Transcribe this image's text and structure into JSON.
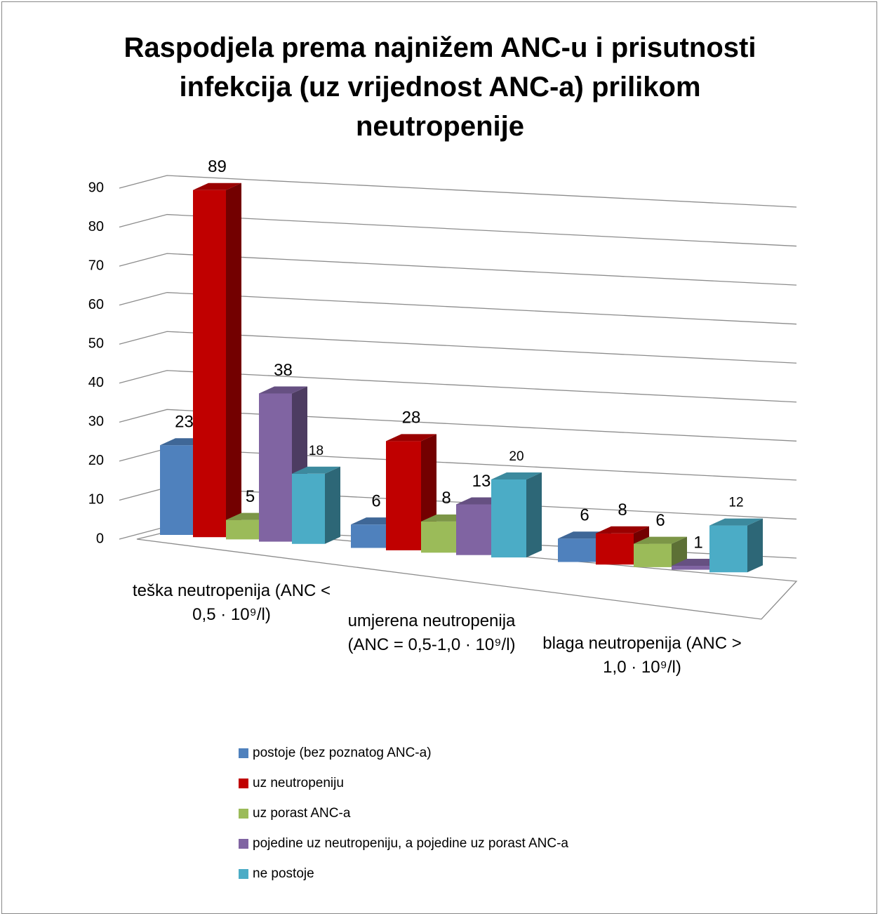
{
  "chart_data": {
    "type": "bar3d",
    "title": "Raspodjela prema najnižem ANC-u i prisutnosti infekcija (uz vrijednost ANC-a) prilikom neutropenije",
    "categories": [
      "teška neutropenija (ANC < 0,5 · 10⁹/l)",
      "umjerena neutropenija (ANC = 0,5-1,0 · 10⁹/l)",
      "blaga neutropenija (ANC > 1,0 · 10⁹/l)"
    ],
    "series": [
      {
        "name": "postoje (bez poznatog ANC-a)",
        "color": "#4f81bd",
        "values": [
          23,
          6,
          6
        ]
      },
      {
        "name": "uz neutropeniju",
        "color": "#c00000",
        "values": [
          89,
          28,
          8
        ]
      },
      {
        "name": "uz porast ANC-a",
        "color": "#9bbb59",
        "values": [
          5,
          8,
          6
        ]
      },
      {
        "name": "pojedine uz neutropeniju, a pojedine uz porast ANC-a",
        "color": "#8064a2",
        "values": [
          38,
          13,
          1
        ]
      },
      {
        "name": "ne postoje",
        "color": "#4bacc6",
        "values": [
          18,
          20,
          12
        ]
      }
    ],
    "ylim": [
      0,
      90
    ],
    "yticks": [
      0,
      10,
      20,
      30,
      40,
      50,
      60,
      70,
      80,
      90
    ],
    "grid": true,
    "legend": "bottom"
  }
}
